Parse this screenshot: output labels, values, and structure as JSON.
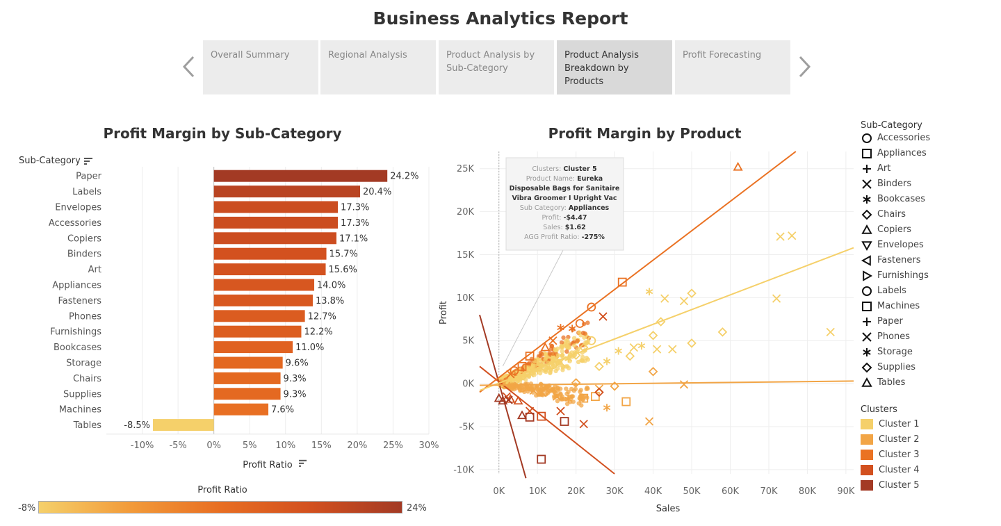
{
  "page": {
    "title": "Business Analytics Report"
  },
  "tabs": [
    {
      "label": "Overall Summary",
      "active": false
    },
    {
      "label": "Regional Analysis",
      "active": false
    },
    {
      "label": "Product Analysis by Sub-Category",
      "active": false
    },
    {
      "label": "Product Analysis Breakdown by Products",
      "active": true
    },
    {
      "label": "Profit Forecasting",
      "active": false
    }
  ],
  "bar_chart": {
    "title": "Profit Margin by Sub-Category",
    "row_header": "Sub-Category"
  },
  "color_legend": {
    "title": "Profit Ratio",
    "min_label": "-8%",
    "max_label": "24%",
    "colors": [
      "#f5d06a",
      "#f29b3a",
      "#e86e22",
      "#d2501f",
      "#a33a24"
    ]
  },
  "scatter": {
    "title": "Profit Margin by Product",
    "tooltip": [
      {
        "key": "Clusters:",
        "value": "Cluster 5"
      },
      {
        "key": "Product Name:",
        "value": "Eureka"
      },
      {
        "key": "",
        "value": "Disposable Bags for Sanitaire"
      },
      {
        "key": "",
        "value": "Vibra Groomer I Upright Vac"
      },
      {
        "key": "Sub Category:",
        "value": "Appliances"
      },
      {
        "key": "Profit:",
        "value": "-$4.47"
      },
      {
        "key": "Sales:",
        "value": "$1.62"
      },
      {
        "key": "AGG Profit Ratio:",
        "value": "-275%"
      }
    ]
  },
  "shape_legend": {
    "title": "Sub-Category",
    "items": [
      {
        "label": "Accessories",
        "shape": "circle"
      },
      {
        "label": "Appliances",
        "shape": "square"
      },
      {
        "label": "Art",
        "shape": "plus"
      },
      {
        "label": "Binders",
        "shape": "x"
      },
      {
        "label": "Bookcases",
        "shape": "asterisk"
      },
      {
        "label": "Chairs",
        "shape": "diamond"
      },
      {
        "label": "Copiers",
        "shape": "triangle-up"
      },
      {
        "label": "Envelopes",
        "shape": "triangle-down"
      },
      {
        "label": "Fasteners",
        "shape": "triangle-left"
      },
      {
        "label": "Furnishings",
        "shape": "triangle-right"
      },
      {
        "label": "Labels",
        "shape": "circle"
      },
      {
        "label": "Machines",
        "shape": "square"
      },
      {
        "label": "Paper",
        "shape": "plus"
      },
      {
        "label": "Phones",
        "shape": "x"
      },
      {
        "label": "Storage",
        "shape": "asterisk"
      },
      {
        "label": "Supplies",
        "shape": "diamond"
      },
      {
        "label": "Tables",
        "shape": "triangle-up"
      }
    ]
  },
  "cluster_legend": {
    "title": "Clusters",
    "items": [
      {
        "label": "Cluster 1",
        "color": "#f5d06a"
      },
      {
        "label": "Cluster 2",
        "color": "#f2a546"
      },
      {
        "label": "Cluster 3",
        "color": "#ea7223"
      },
      {
        "label": "Cluster 4",
        "color": "#d2501f"
      },
      {
        "label": "Cluster 5",
        "color": "#a33a24"
      }
    ]
  },
  "chart_data": [
    {
      "type": "bar",
      "orientation": "horizontal",
      "title": "Profit Margin by Sub-Category",
      "xlabel": "Profit Ratio",
      "ylabel": "Sub-Category",
      "categories": [
        "Paper",
        "Labels",
        "Envelopes",
        "Accessories",
        "Copiers",
        "Binders",
        "Art",
        "Appliances",
        "Fasteners",
        "Phones",
        "Furnishings",
        "Bookcases",
        "Storage",
        "Chairs",
        "Supplies",
        "Machines",
        "Tables"
      ],
      "values": [
        24.2,
        20.4,
        17.3,
        17.3,
        17.1,
        15.7,
        15.6,
        14.0,
        13.8,
        12.7,
        12.2,
        11.0,
        9.6,
        9.3,
        9.3,
        7.6,
        -8.5
      ],
      "value_labels": [
        "24.2%",
        "20.4%",
        "17.3%",
        "17.3%",
        "17.1%",
        "15.7%",
        "15.6%",
        "14.0%",
        "13.8%",
        "12.7%",
        "12.2%",
        "11.0%",
        "9.6%",
        "9.3%",
        "9.3%",
        "7.6%",
        "-8.5%"
      ],
      "xlim": [
        -15,
        30
      ],
      "xticks": [
        -10,
        -5,
        0,
        5,
        10,
        15,
        20,
        25,
        30
      ],
      "xtick_labels": [
        "-10%",
        "-5%",
        "0%",
        "5%",
        "10%",
        "15%",
        "20%",
        "25%",
        "30%"
      ],
      "grid": true
    },
    {
      "type": "scatter",
      "title": "Profit Margin by Product",
      "xlabel": "Sales",
      "ylabel": "Profit",
      "xlim": [
        -5000,
        92000
      ],
      "ylim": [
        -10500,
        27000
      ],
      "xticks": [
        0,
        10000,
        20000,
        30000,
        40000,
        50000,
        60000,
        70000,
        80000,
        90000
      ],
      "xtick_labels": [
        "0K",
        "10K",
        "20K",
        "30K",
        "40K",
        "50K",
        "60K",
        "70K",
        "80K",
        "90K"
      ],
      "yticks": [
        -10000,
        -5000,
        0,
        5000,
        10000,
        15000,
        20000,
        25000
      ],
      "ytick_labels": [
        "-10K",
        "-5K",
        "0K",
        "5K",
        "10K",
        "15K",
        "20K",
        "25K"
      ],
      "grid": true,
      "trend_lines": [
        {
          "cluster": "Cluster 5",
          "x": [
            -5000,
            7000
          ],
          "y": [
            8000,
            -11000
          ]
        },
        {
          "cluster": "Cluster 4",
          "x": [
            -5000,
            30000
          ],
          "y": [
            2000,
            -10500
          ]
        },
        {
          "cluster": "Cluster 3",
          "x": [
            -5000,
            77000
          ],
          "y": [
            -1000,
            27000
          ]
        },
        {
          "cluster": "Cluster 1",
          "x": [
            -5000,
            92000
          ],
          "y": [
            -800,
            15800
          ]
        },
        {
          "cluster": "Cluster 2",
          "x": [
            -5000,
            92000
          ],
          "y": [
            -200,
            300
          ]
        }
      ],
      "series": [
        {
          "name": "Cluster 1",
          "points": [
            {
              "x": 39000,
              "y": 10700,
              "shape": "asterisk"
            },
            {
              "x": 43000,
              "y": 9900,
              "shape": "x"
            },
            {
              "x": 48000,
              "y": 9600,
              "shape": "x"
            },
            {
              "x": 50000,
              "y": 10500,
              "shape": "diamond"
            },
            {
              "x": 73000,
              "y": 17100,
              "shape": "x"
            },
            {
              "x": 76000,
              "y": 17200,
              "shape": "x"
            },
            {
              "x": 72000,
              "y": 9900,
              "shape": "x"
            },
            {
              "x": 86000,
              "y": 6000,
              "shape": "x"
            },
            {
              "x": 58000,
              "y": 6000,
              "shape": "diamond"
            },
            {
              "x": 50000,
              "y": 4700,
              "shape": "diamond"
            },
            {
              "x": 45000,
              "y": 4000,
              "shape": "x"
            },
            {
              "x": 41000,
              "y": 4000,
              "shape": "x"
            },
            {
              "x": 40000,
              "y": 5600,
              "shape": "diamond"
            },
            {
              "x": 42000,
              "y": 7200,
              "shape": "diamond"
            },
            {
              "x": 35000,
              "y": 4200,
              "shape": "x"
            },
            {
              "x": 34000,
              "y": 3200,
              "shape": "diamond"
            },
            {
              "x": 37000,
              "y": 4400,
              "shape": "asterisk"
            },
            {
              "x": 31000,
              "y": 3800,
              "shape": "asterisk"
            },
            {
              "x": 28000,
              "y": 2600,
              "shape": "asterisk"
            },
            {
              "x": 26000,
              "y": 2000,
              "shape": "diamond"
            },
            {
              "x": 24000,
              "y": 5000,
              "shape": "circle"
            },
            {
              "x": 22000,
              "y": 4200,
              "shape": "diamond"
            },
            {
              "x": 20000,
              "y": 3300,
              "shape": "diamond"
            },
            {
              "x": 18000,
              "y": 2900,
              "shape": "asterisk"
            },
            {
              "x": 16000,
              "y": 2500,
              "shape": "x"
            },
            {
              "x": 14000,
              "y": 2200,
              "shape": "circle"
            },
            {
              "x": 12000,
              "y": 1800,
              "shape": "diamond"
            },
            {
              "x": 10000,
              "y": 1500,
              "shape": "plus"
            },
            {
              "x": 8000,
              "y": 1200,
              "shape": "x"
            },
            {
              "x": 6000,
              "y": 900,
              "shape": "circle"
            }
          ]
        },
        {
          "name": "Cluster 2",
          "points": [
            {
              "x": 39000,
              "y": -4400,
              "shape": "x"
            },
            {
              "x": 48000,
              "y": -100,
              "shape": "x"
            },
            {
              "x": 40000,
              "y": 1400,
              "shape": "diamond"
            },
            {
              "x": 33000,
              "y": -2100,
              "shape": "square"
            },
            {
              "x": 28000,
              "y": -2800,
              "shape": "asterisk"
            },
            {
              "x": 25000,
              "y": -1500,
              "shape": "square"
            },
            {
              "x": 22000,
              "y": -1700,
              "shape": "square"
            },
            {
              "x": 18000,
              "y": -1800,
              "shape": "asterisk"
            },
            {
              "x": 15000,
              "y": -1500,
              "shape": "x"
            },
            {
              "x": 12000,
              "y": -1000,
              "shape": "diamond"
            },
            {
              "x": 9000,
              "y": -800,
              "shape": "x"
            },
            {
              "x": 6000,
              "y": -500,
              "shape": "circle"
            },
            {
              "x": 20000,
              "y": 100,
              "shape": "diamond"
            },
            {
              "x": 26000,
              "y": -600,
              "shape": "x"
            },
            {
              "x": 30000,
              "y": -300,
              "shape": "diamond"
            }
          ]
        },
        {
          "name": "Cluster 3",
          "points": [
            {
              "x": 62000,
              "y": 25200,
              "shape": "triangle-up"
            },
            {
              "x": 32000,
              "y": 11800,
              "shape": "square"
            },
            {
              "x": 24000,
              "y": 8900,
              "shape": "circle"
            },
            {
              "x": 21000,
              "y": 7000,
              "shape": "circle"
            },
            {
              "x": 19000,
              "y": 6400,
              "shape": "asterisk"
            },
            {
              "x": 16000,
              "y": 6500,
              "shape": "asterisk"
            },
            {
              "x": 14000,
              "y": 5000,
              "shape": "x"
            },
            {
              "x": 12000,
              "y": 4200,
              "shape": "triangle-up"
            },
            {
              "x": 8000,
              "y": 3200,
              "shape": "square"
            },
            {
              "x": 6000,
              "y": 2000,
              "shape": "square"
            },
            {
              "x": 4000,
              "y": 1500,
              "shape": "circle"
            },
            {
              "x": 3000,
              "y": 1100,
              "shape": "x"
            }
          ]
        },
        {
          "name": "Cluster 4",
          "points": [
            {
              "x": 22000,
              "y": -4700,
              "shape": "x"
            },
            {
              "x": 16000,
              "y": -3200,
              "shape": "x"
            },
            {
              "x": 11000,
              "y": -3800,
              "shape": "square"
            },
            {
              "x": 8000,
              "y": -3200,
              "shape": "x"
            },
            {
              "x": 5000,
              "y": -2000,
              "shape": "triangle-up"
            },
            {
              "x": 3000,
              "y": -1800,
              "shape": "triangle-up"
            },
            {
              "x": 26000,
              "y": -1000,
              "shape": "diamond"
            },
            {
              "x": 27000,
              "y": 7800,
              "shape": "x"
            },
            {
              "x": 2000,
              "y": -1500,
              "shape": "x"
            }
          ]
        },
        {
          "name": "Cluster 5",
          "points": [
            {
              "x": 11000,
              "y": -8800,
              "shape": "square"
            },
            {
              "x": 17000,
              "y": -4400,
              "shape": "square"
            },
            {
              "x": 6000,
              "y": -3700,
              "shape": "triangle-up"
            },
            {
              "x": 8000,
              "y": -3900,
              "shape": "square"
            },
            {
              "x": 1000,
              "y": -2000,
              "shape": "triangle-up"
            },
            {
              "x": 2500,
              "y": -1900,
              "shape": "x"
            },
            {
              "x": 0,
              "y": -1700,
              "shape": "triangle-up"
            }
          ]
        }
      ]
    }
  ]
}
